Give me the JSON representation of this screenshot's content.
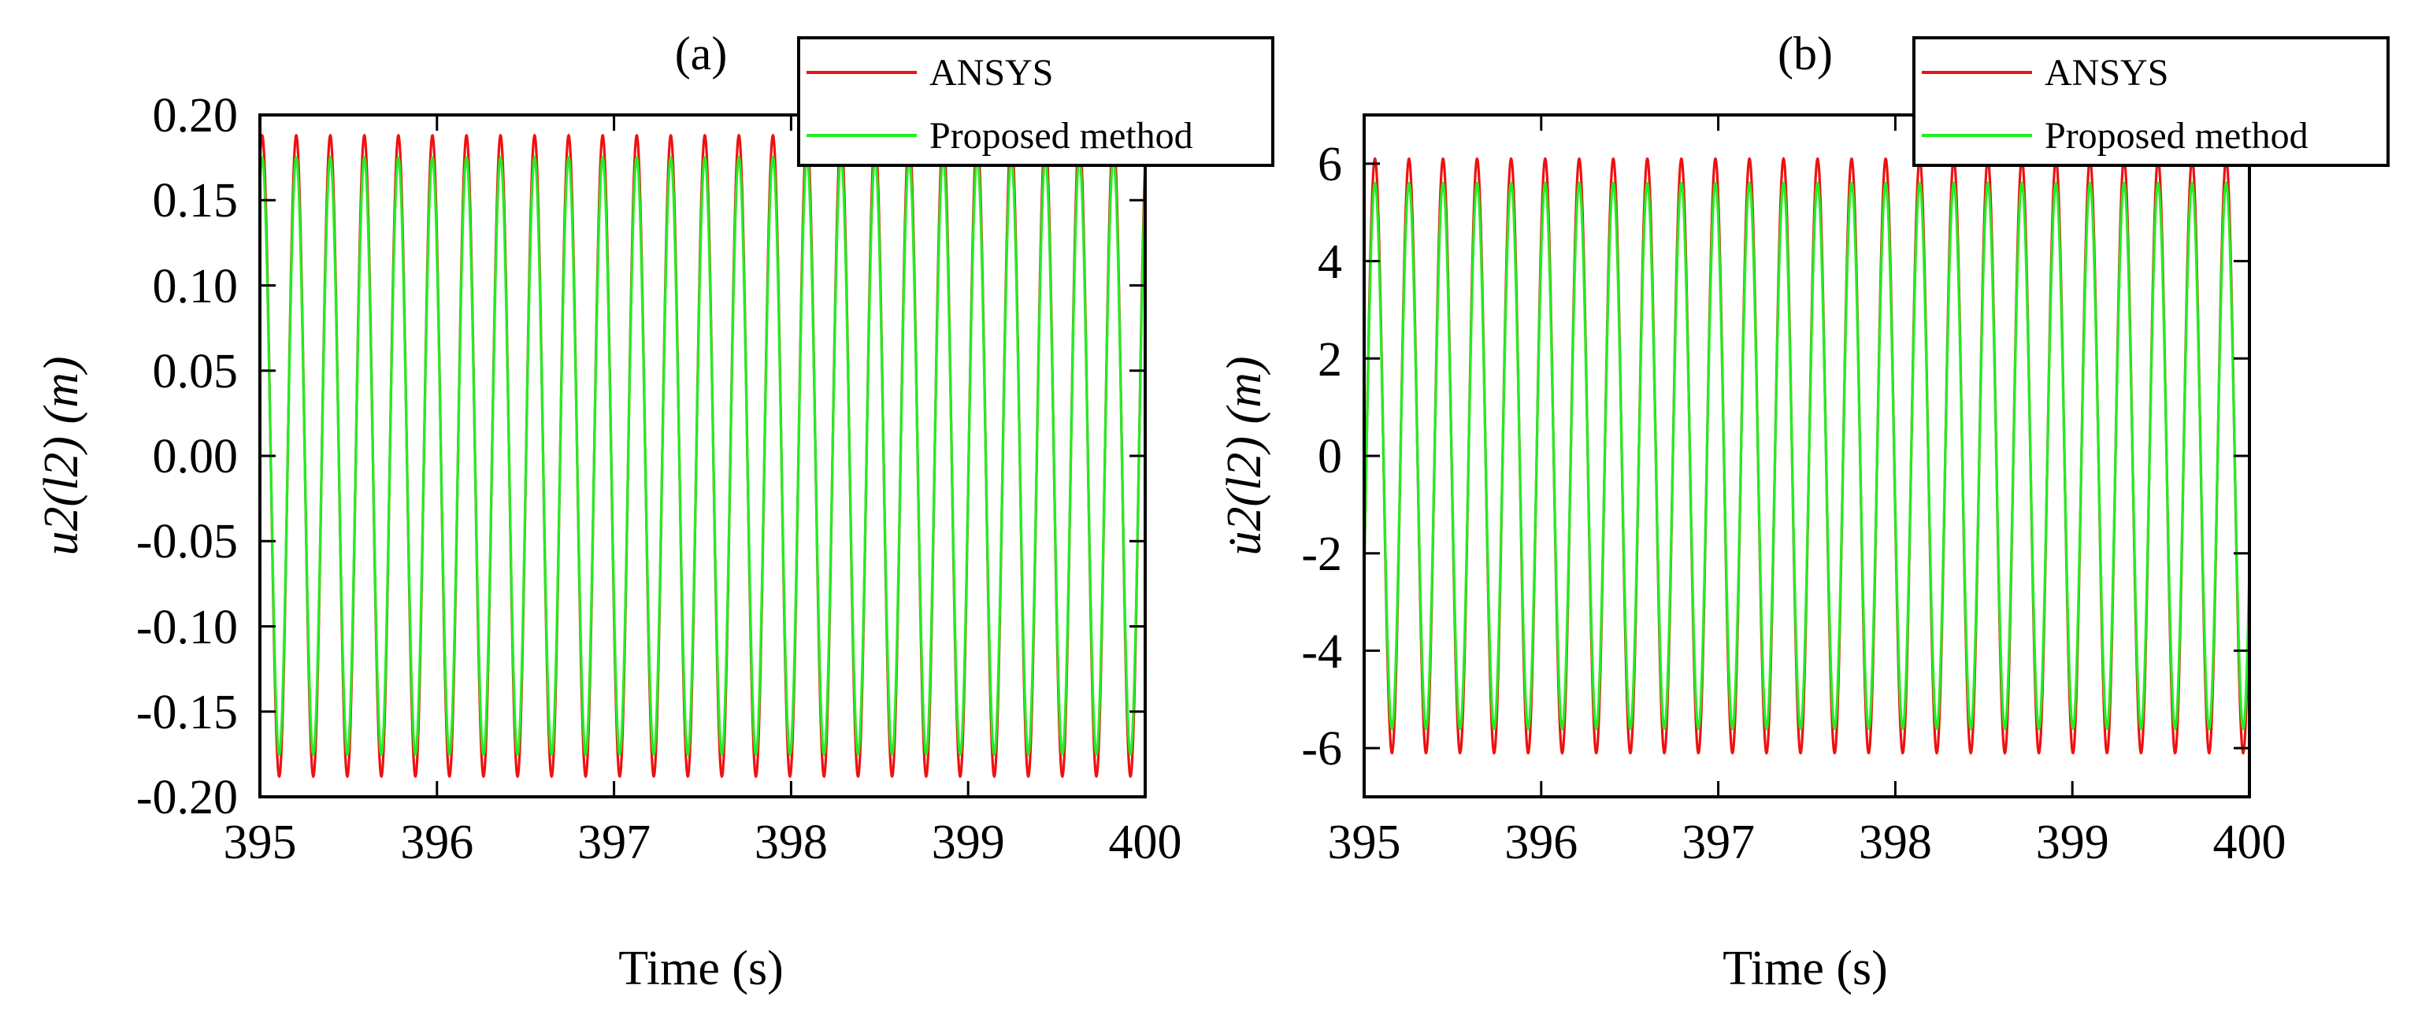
{
  "chart_data": [
    {
      "type": "line",
      "panel_label": "(a)",
      "xlabel": "Time (s)",
      "ylabel": "u2(l2) (m)",
      "xlim": [
        395,
        400
      ],
      "ylim": [
        -0.2,
        0.2
      ],
      "xticks": [
        395,
        396,
        397,
        398,
        399,
        400
      ],
      "yticks": [
        0.2,
        0.15,
        0.1,
        0.05,
        0.0,
        -0.05,
        -0.1,
        -0.15,
        -0.2
      ],
      "ytick_labels": [
        "0.20",
        "0.15",
        "0.10",
        "0.05",
        "0.00",
        "-0.05",
        "-0.10",
        "-0.15",
        "-0.20"
      ],
      "frequency_hz": 5.2,
      "series": [
        {
          "name": "ANSYS",
          "color": "#ee1111",
          "amplitude": 0.188,
          "phase": 1.15
        },
        {
          "name": "Proposed method",
          "color": "#22ee22",
          "amplitude": 0.175,
          "phase": 1.15
        }
      ],
      "legend_position": "top-right"
    },
    {
      "type": "line",
      "panel_label": "(b)",
      "xlabel": "Time (s)",
      "ylabel": "u̇2(l2) (m)",
      "xlim": [
        395,
        400
      ],
      "ylim": [
        -7,
        7
      ],
      "xticks": [
        395,
        396,
        397,
        398,
        399,
        400
      ],
      "yticks": [
        6,
        4,
        2,
        0,
        -2,
        -4,
        -6
      ],
      "ytick_labels": [
        "6",
        "4",
        "2",
        "0",
        "-2",
        "-4",
        "-6"
      ],
      "frequency_hz": 5.2,
      "series": [
        {
          "name": "ANSYS",
          "color": "#ee1111",
          "amplitude": 6.1,
          "phase": -0.42
        },
        {
          "name": "Proposed method",
          "color": "#22ee22",
          "amplitude": 5.6,
          "phase": -0.42
        }
      ],
      "legend_position": "top-right"
    }
  ]
}
